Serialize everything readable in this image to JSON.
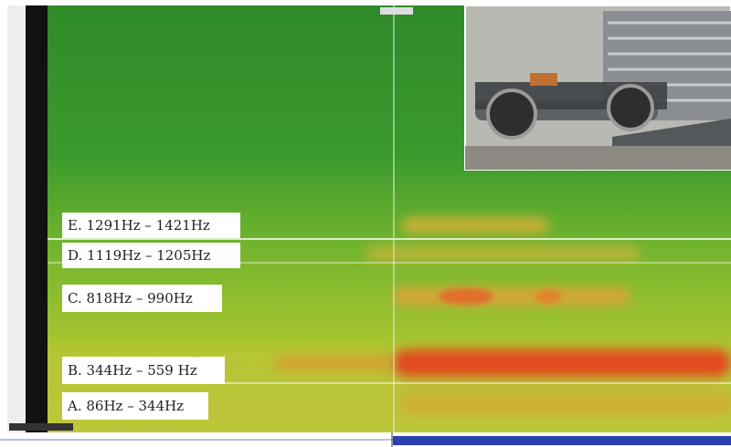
{
  "bands": [
    {
      "label": "E. 1291Hz – 1421Hz"
    },
    {
      "label": "D. 1119Hz – 1205Hz"
    },
    {
      "label": "C. 818Hz – 990Hz"
    },
    {
      "label": "B. 344Hz – 559 Hz"
    },
    {
      "label": "A. 86Hz – 344Hz"
    }
  ]
}
